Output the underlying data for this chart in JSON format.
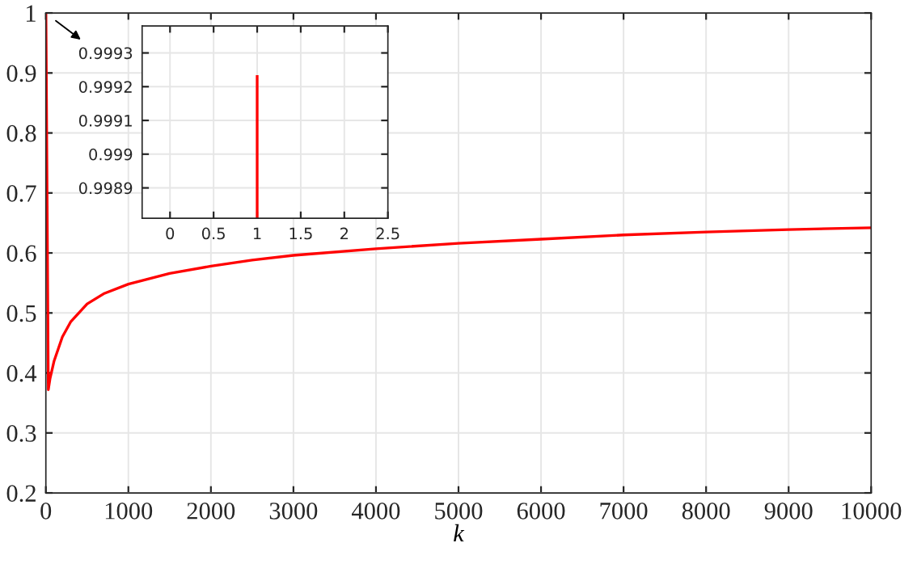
{
  "chart_data": [
    {
      "type": "line",
      "xlabel": "k",
      "x": [
        1,
        30,
        50,
        100,
        200,
        300,
        500,
        700,
        1000,
        1500,
        2000,
        2500,
        3000,
        4000,
        5000,
        6000,
        7000,
        8000,
        9000,
        10000
      ],
      "series": [
        {
          "color": "#ff0000",
          "values": [
            1,
            0.372,
            0.39,
            0.42,
            0.46,
            0.485,
            0.515,
            0.532,
            0.548,
            0.566,
            0.578,
            0.588,
            0.596,
            0.607,
            0.616,
            0.623,
            0.63,
            0.635,
            0.639,
            0.642
          ]
        }
      ],
      "xlim": [
        0,
        10000
      ],
      "ylim": [
        0.2,
        1
      ],
      "xticks": [
        0,
        1000,
        2000,
        3000,
        4000,
        5000,
        6000,
        7000,
        8000,
        9000,
        10000
      ],
      "yticks": [
        0.2,
        0.3,
        0.4,
        0.5,
        0.6,
        0.7,
        0.8,
        0.9,
        {
          "value": 1,
          "label": "1"
        }
      ],
      "grid": true
    },
    {
      "type": "line",
      "x": [
        1,
        1
      ],
      "series": [
        {
          "color": "#ff0000",
          "values": [
            0.99923,
            0.99881
          ]
        }
      ],
      "xlim": [
        -0.32,
        2.5
      ],
      "ylim": [
        0.99881,
        0.99938
      ],
      "xticks": [
        0,
        0.5,
        1,
        1.5,
        2,
        2.5
      ],
      "yticks": [
        0.9989,
        0.999,
        0.9991,
        0.9992,
        0.9993
      ],
      "grid": true
    }
  ]
}
